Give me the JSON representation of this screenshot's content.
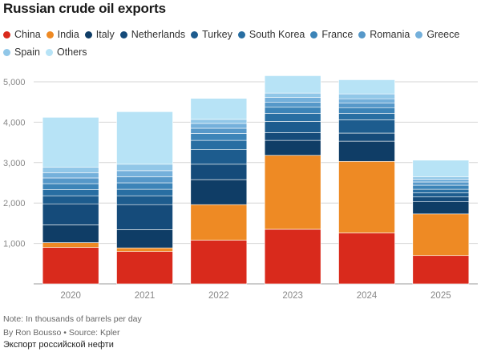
{
  "title": "Russian crude oil exports",
  "legend": [
    {
      "name": "China",
      "color": "#d92a1c"
    },
    {
      "name": "India",
      "color": "#ee8a24"
    },
    {
      "name": "Italy",
      "color": "#0f3d66"
    },
    {
      "name": "Netherlands",
      "color": "#154b7a"
    },
    {
      "name": "Turkey",
      "color": "#1d5c8e"
    },
    {
      "name": "South Korea",
      "color": "#286ea2"
    },
    {
      "name": "France",
      "color": "#3c84b8"
    },
    {
      "name": "Romania",
      "color": "#5698c9"
    },
    {
      "name": "Greece",
      "color": "#74b0db"
    },
    {
      "name": "Spain",
      "color": "#91c7e8"
    },
    {
      "name": "Others",
      "color": "#b7e3f6"
    }
  ],
  "chart_data": {
    "type": "bar",
    "stacked": true,
    "title": "Russian crude oil exports",
    "categories": [
      "2020",
      "2021",
      "2022",
      "2023",
      "2024",
      "2025"
    ],
    "ylim": [
      0,
      5000
    ],
    "yticks": [
      1000,
      2000,
      3000,
      4000,
      5000
    ],
    "ytick_labels": [
      "1,000",
      "2,000",
      "3,000",
      "4,000",
      "5,000"
    ],
    "grid": true,
    "legend_position": "top",
    "series": [
      {
        "name": "China",
        "values": [
          900,
          800,
          1080,
          1350,
          1260,
          700
        ]
      },
      {
        "name": "India",
        "values": [
          120,
          90,
          880,
          1830,
          1770,
          1030
        ]
      },
      {
        "name": "Italy",
        "values": [
          440,
          450,
          620,
          370,
          500,
          300
        ]
      },
      {
        "name": "Netherlands",
        "values": [
          520,
          620,
          380,
          190,
          200,
          120
        ]
      },
      {
        "name": "Turkey",
        "values": [
          200,
          220,
          360,
          280,
          330,
          100
        ]
      },
      {
        "name": "South Korea",
        "values": [
          150,
          160,
          230,
          200,
          160,
          90
        ]
      },
      {
        "name": "France",
        "values": [
          150,
          160,
          170,
          150,
          140,
          100
        ]
      },
      {
        "name": "Romania",
        "values": [
          140,
          150,
          130,
          120,
          110,
          80
        ]
      },
      {
        "name": "Greece",
        "values": [
          130,
          150,
          120,
          120,
          110,
          70
        ]
      },
      {
        "name": "Spain",
        "values": [
          140,
          160,
          100,
          110,
          120,
          60
        ]
      },
      {
        "name": "Others",
        "values": [
          1230,
          1300,
          520,
          430,
          350,
          410
        ]
      }
    ]
  },
  "footer": {
    "note": "Note: In thousands of barrels per day",
    "byline": "By Ron Bousso • Source: Kpler",
    "caption": "Экспорт российской нефти"
  }
}
